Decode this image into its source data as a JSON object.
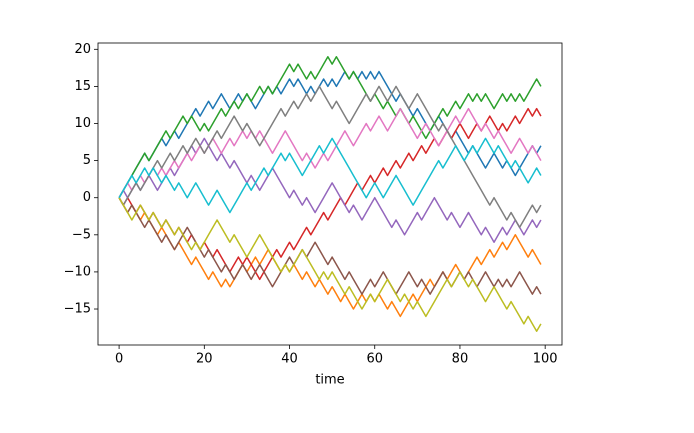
{
  "chart_data": {
    "type": "line",
    "xlabel": "time",
    "x": [
      0,
      1,
      2,
      3,
      4,
      5,
      6,
      7,
      8,
      9,
      10,
      11,
      12,
      13,
      14,
      15,
      16,
      17,
      18,
      19,
      20,
      21,
      22,
      23,
      24,
      25,
      26,
      27,
      28,
      29,
      30,
      31,
      32,
      33,
      34,
      35,
      36,
      37,
      38,
      39,
      40,
      41,
      42,
      43,
      44,
      45,
      46,
      47,
      48,
      49,
      50,
      51,
      52,
      53,
      54,
      55,
      56,
      57,
      58,
      59,
      60,
      61,
      62,
      63,
      64,
      65,
      66,
      67,
      68,
      69,
      70,
      71,
      72,
      73,
      74,
      75,
      76,
      77,
      78,
      79,
      80,
      81,
      82,
      83,
      84,
      85,
      86,
      87,
      88,
      89,
      90,
      91,
      92,
      93,
      94,
      95,
      96,
      97,
      98,
      99
    ],
    "series": [
      {
        "color": "#1f77b4",
        "values": [
          0,
          1,
          2,
          3,
          4,
          5,
          6,
          5,
          6,
          7,
          8,
          7,
          8,
          9,
          8,
          9,
          10,
          11,
          12,
          11,
          12,
          13,
          12,
          13,
          14,
          13,
          12,
          13,
          14,
          13,
          14,
          13,
          12,
          13,
          14,
          15,
          14,
          15,
          14,
          15,
          16,
          15,
          16,
          15,
          14,
          15,
          14,
          15,
          16,
          15,
          16,
          15,
          16,
          17,
          16,
          17,
          16,
          17,
          16,
          17,
          16,
          17,
          16,
          15,
          14,
          13,
          14,
          13,
          12,
          11,
          12,
          11,
          10,
          9,
          10,
          11,
          10,
          9,
          8,
          9,
          8,
          7,
          6,
          7,
          6,
          5,
          4,
          5,
          6,
          5,
          4,
          5,
          4,
          3,
          4,
          5,
          6,
          7,
          6,
          7
        ]
      },
      {
        "color": "#ff7f0e",
        "values": [
          0,
          -1,
          -2,
          -1,
          -2,
          -3,
          -2,
          -3,
          -4,
          -5,
          -4,
          -5,
          -6,
          -7,
          -6,
          -7,
          -8,
          -9,
          -8,
          -9,
          -10,
          -11,
          -10,
          -11,
          -12,
          -11,
          -12,
          -11,
          -10,
          -9,
          -10,
          -9,
          -8,
          -9,
          -8,
          -7,
          -8,
          -9,
          -10,
          -9,
          -10,
          -9,
          -10,
          -11,
          -10,
          -11,
          -12,
          -11,
          -12,
          -13,
          -12,
          -13,
          -14,
          -13,
          -14,
          -15,
          -14,
          -13,
          -14,
          -13,
          -14,
          -13,
          -14,
          -15,
          -14,
          -15,
          -16,
          -15,
          -14,
          -13,
          -14,
          -13,
          -12,
          -11,
          -12,
          -11,
          -10,
          -11,
          -10,
          -9,
          -10,
          -11,
          -10,
          -9,
          -8,
          -9,
          -8,
          -7,
          -8,
          -7,
          -6,
          -7,
          -6,
          -5,
          -6,
          -7,
          -8,
          -7,
          -8,
          -9
        ]
      },
      {
        "color": "#2ca02c",
        "values": [
          0,
          1,
          2,
          3,
          4,
          5,
          6,
          5,
          6,
          7,
          8,
          9,
          8,
          9,
          10,
          11,
          10,
          11,
          10,
          9,
          10,
          9,
          10,
          11,
          12,
          11,
          12,
          13,
          12,
          13,
          14,
          13,
          14,
          15,
          14,
          15,
          14,
          15,
          16,
          17,
          18,
          17,
          18,
          17,
          16,
          17,
          16,
          17,
          18,
          19,
          18,
          19,
          18,
          17,
          16,
          17,
          16,
          15,
          14,
          13,
          14,
          13,
          12,
          13,
          12,
          11,
          12,
          11,
          10,
          11,
          10,
          9,
          8,
          9,
          10,
          11,
          12,
          11,
          12,
          13,
          12,
          13,
          14,
          13,
          14,
          13,
          14,
          13,
          12,
          13,
          14,
          13,
          14,
          13,
          14,
          13,
          14,
          15,
          16,
          15
        ]
      },
      {
        "color": "#d62728",
        "values": [
          0,
          -1,
          0,
          -1,
          -2,
          -1,
          -2,
          -3,
          -2,
          -3,
          -4,
          -3,
          -4,
          -5,
          -4,
          -5,
          -6,
          -5,
          -6,
          -7,
          -6,
          -7,
          -8,
          -7,
          -8,
          -9,
          -10,
          -9,
          -8,
          -9,
          -8,
          -9,
          -10,
          -11,
          -10,
          -9,
          -8,
          -7,
          -8,
          -7,
          -6,
          -7,
          -6,
          -5,
          -4,
          -5,
          -4,
          -3,
          -2,
          -3,
          -2,
          -1,
          0,
          -1,
          0,
          1,
          2,
          1,
          2,
          3,
          2,
          3,
          4,
          3,
          4,
          5,
          4,
          5,
          6,
          5,
          6,
          7,
          6,
          7,
          8,
          7,
          8,
          9,
          8,
          9,
          10,
          9,
          8,
          9,
          10,
          9,
          10,
          11,
          10,
          9,
          10,
          9,
          10,
          11,
          10,
          11,
          12,
          11,
          12,
          11
        ]
      },
      {
        "color": "#9467bd",
        "values": [
          0,
          1,
          0,
          1,
          2,
          1,
          2,
          3,
          2,
          1,
          2,
          3,
          4,
          3,
          4,
          5,
          6,
          7,
          6,
          7,
          8,
          7,
          6,
          5,
          6,
          5,
          4,
          5,
          4,
          3,
          2,
          3,
          2,
          1,
          2,
          3,
          4,
          3,
          2,
          1,
          0,
          1,
          0,
          -1,
          0,
          -1,
          -2,
          -1,
          0,
          1,
          2,
          1,
          0,
          -1,
          -2,
          -1,
          -2,
          -3,
          -2,
          -1,
          0,
          -1,
          -2,
          -3,
          -4,
          -3,
          -4,
          -5,
          -4,
          -3,
          -2,
          -3,
          -2,
          -1,
          0,
          -1,
          -2,
          -3,
          -2,
          -3,
          -4,
          -3,
          -2,
          -3,
          -4,
          -5,
          -4,
          -5,
          -6,
          -5,
          -4,
          -5,
          -4,
          -3,
          -4,
          -5,
          -4,
          -3,
          -4,
          -3
        ]
      },
      {
        "color": "#8c564b",
        "values": [
          0,
          -1,
          -2,
          -1,
          -2,
          -3,
          -4,
          -3,
          -4,
          -5,
          -6,
          -5,
          -6,
          -7,
          -6,
          -5,
          -4,
          -5,
          -6,
          -7,
          -8,
          -7,
          -8,
          -9,
          -10,
          -9,
          -10,
          -11,
          -10,
          -9,
          -10,
          -11,
          -10,
          -9,
          -10,
          -11,
          -12,
          -11,
          -10,
          -9,
          -8,
          -9,
          -8,
          -7,
          -8,
          -7,
          -6,
          -7,
          -8,
          -9,
          -8,
          -9,
          -10,
          -11,
          -10,
          -11,
          -12,
          -13,
          -12,
          -11,
          -12,
          -11,
          -10,
          -11,
          -12,
          -13,
          -12,
          -11,
          -10,
          -11,
          -12,
          -11,
          -12,
          -13,
          -12,
          -11,
          -10,
          -11,
          -12,
          -11,
          -10,
          -11,
          -10,
          -11,
          -12,
          -11,
          -10,
          -11,
          -12,
          -11,
          -12,
          -11,
          -12,
          -11,
          -10,
          -11,
          -12,
          -13,
          -12,
          -13
        ]
      },
      {
        "color": "#e377c2",
        "values": [
          0,
          1,
          2,
          1,
          2,
          3,
          2,
          3,
          4,
          3,
          4,
          3,
          4,
          5,
          4,
          5,
          6,
          5,
          6,
          7,
          6,
          7,
          8,
          7,
          6,
          7,
          8,
          7,
          8,
          9,
          8,
          9,
          8,
          9,
          8,
          7,
          6,
          7,
          8,
          9,
          8,
          7,
          6,
          5,
          6,
          5,
          4,
          5,
          6,
          5,
          6,
          7,
          8,
          9,
          8,
          7,
          8,
          9,
          10,
          9,
          10,
          11,
          10,
          9,
          10,
          11,
          12,
          11,
          10,
          9,
          8,
          9,
          10,
          9,
          8,
          7,
          8,
          9,
          10,
          11,
          10,
          11,
          12,
          11,
          10,
          9,
          10,
          9,
          8,
          9,
          8,
          7,
          6,
          7,
          8,
          7,
          6,
          7,
          6,
          5
        ]
      },
      {
        "color": "#7f7f7f",
        "values": [
          0,
          -1,
          0,
          1,
          2,
          1,
          2,
          3,
          4,
          5,
          4,
          5,
          6,
          5,
          6,
          7,
          6,
          7,
          8,
          7,
          6,
          7,
          8,
          9,
          8,
          9,
          10,
          11,
          10,
          9,
          10,
          9,
          8,
          7,
          8,
          9,
          10,
          11,
          12,
          11,
          12,
          13,
          12,
          13,
          14,
          13,
          14,
          15,
          14,
          13,
          12,
          13,
          12,
          11,
          10,
          11,
          12,
          13,
          14,
          13,
          14,
          15,
          14,
          13,
          14,
          15,
          14,
          13,
          12,
          13,
          14,
          13,
          12,
          11,
          10,
          9,
          10,
          9,
          8,
          7,
          6,
          5,
          4,
          3,
          2,
          1,
          0,
          -1,
          0,
          -1,
          -2,
          -3,
          -2,
          -3,
          -4,
          -3,
          -2,
          -1,
          -2,
          -1
        ]
      },
      {
        "color": "#bcbd22",
        "values": [
          0,
          -1,
          -2,
          -3,
          -2,
          -1,
          -2,
          -3,
          -2,
          -3,
          -4,
          -3,
          -4,
          -5,
          -4,
          -5,
          -6,
          -7,
          -6,
          -7,
          -6,
          -5,
          -4,
          -3,
          -4,
          -5,
          -6,
          -5,
          -6,
          -7,
          -8,
          -7,
          -6,
          -5,
          -6,
          -7,
          -8,
          -9,
          -10,
          -9,
          -10,
          -9,
          -8,
          -7,
          -8,
          -9,
          -10,
          -11,
          -10,
          -11,
          -10,
          -11,
          -12,
          -13,
          -12,
          -13,
          -14,
          -15,
          -14,
          -13,
          -14,
          -13,
          -12,
          -11,
          -12,
          -13,
          -14,
          -13,
          -14,
          -15,
          -14,
          -15,
          -16,
          -15,
          -14,
          -13,
          -12,
          -11,
          -12,
          -11,
          -10,
          -11,
          -12,
          -11,
          -12,
          -13,
          -14,
          -13,
          -12,
          -13,
          -14,
          -15,
          -14,
          -15,
          -16,
          -17,
          -16,
          -17,
          -18,
          -17
        ]
      },
      {
        "color": "#17becf",
        "values": [
          0,
          1,
          2,
          3,
          2,
          3,
          4,
          3,
          4,
          3,
          2,
          3,
          2,
          1,
          2,
          1,
          0,
          1,
          2,
          1,
          0,
          -1,
          0,
          1,
          0,
          -1,
          -2,
          -1,
          0,
          1,
          2,
          1,
          2,
          3,
          4,
          3,
          4,
          5,
          6,
          5,
          6,
          5,
          4,
          3,
          4,
          5,
          6,
          7,
          6,
          7,
          8,
          7,
          6,
          5,
          4,
          3,
          2,
          1,
          0,
          1,
          2,
          1,
          0,
          1,
          2,
          3,
          2,
          1,
          0,
          -1,
          0,
          1,
          2,
          3,
          4,
          5,
          4,
          5,
          6,
          7,
          6,
          5,
          6,
          7,
          6,
          7,
          8,
          7,
          6,
          7,
          6,
          5,
          4,
          5,
          4,
          3,
          2,
          3,
          4,
          3
        ]
      }
    ],
    "xlim": [
      -4.95,
      103.95
    ],
    "xticks": [
      0,
      20,
      40,
      60,
      80,
      100
    ],
    "ylim": [
      -19.85,
      20.85
    ],
    "yticks": [
      {
        "value": -15,
        "label": "−15"
      },
      {
        "value": -10,
        "label": "−10"
      },
      {
        "value": -5,
        "label": "−5"
      },
      0,
      5,
      10,
      15,
      20
    ]
  }
}
